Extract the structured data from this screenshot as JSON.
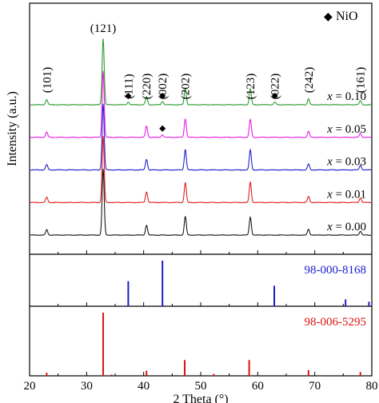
{
  "chart_data": {
    "type": "line",
    "title": "",
    "xlabel": "2 Theta (°)",
    "ylabel": "Intensity (a.u.)",
    "xlim": [
      20,
      80
    ],
    "xticks": [
      20,
      30,
      40,
      50,
      60,
      70,
      80
    ],
    "grid": false,
    "legend": {
      "symbol": "◆",
      "label": "NiO",
      "position": "top-right"
    },
    "panels": {
      "sample_count": 5,
      "sample_height": 5,
      "ref_height": 2
    },
    "peak_labels": [
      {
        "text": "(101)",
        "x": 23.0
      },
      {
        "text": "(121)",
        "x": 32.9
      },
      {
        "text": "(111)",
        "x": 37.3
      },
      {
        "text": "(220)",
        "x": 40.5
      },
      {
        "text": "(002)",
        "x": 43.3
      },
      {
        "text": "(202)",
        "x": 47.3
      },
      {
        "text": "(123)",
        "x": 58.7
      },
      {
        "text": "(022)",
        "x": 63.0
      },
      {
        "text": "(242)",
        "x": 68.9
      },
      {
        "text": "(161)",
        "x": 78.0
      }
    ],
    "nio_markers": [
      {
        "series": "x = 0.10",
        "x": 37.3
      },
      {
        "series": "x = 0.10",
        "x": 43.3
      },
      {
        "series": "x = 0.10",
        "x": 63.0
      },
      {
        "series": "x = 0.05",
        "x": 43.3
      }
    ],
    "series": [
      {
        "name": "x = 0.10",
        "color": "#2e9a2e",
        "peaks": [
          [
            23.0,
            0.08
          ],
          [
            32.9,
            1.0
          ],
          [
            37.3,
            0.04
          ],
          [
            40.5,
            0.12
          ],
          [
            43.3,
            0.05
          ],
          [
            47.3,
            0.25
          ],
          [
            58.7,
            0.24
          ],
          [
            63.0,
            0.04
          ],
          [
            68.9,
            0.09
          ],
          [
            78.0,
            0.06
          ]
        ]
      },
      {
        "name": "x = 0.05",
        "color": "#e81ee8",
        "peaks": [
          [
            23.0,
            0.08
          ],
          [
            32.9,
            1.0
          ],
          [
            40.5,
            0.17
          ],
          [
            43.3,
            0.04
          ],
          [
            47.3,
            0.28
          ],
          [
            58.7,
            0.27
          ],
          [
            68.9,
            0.09
          ],
          [
            78.0,
            0.06
          ]
        ]
      },
      {
        "name": "x = 0.03",
        "color": "#2222cc",
        "peaks": [
          [
            23.0,
            0.08
          ],
          [
            32.9,
            1.0
          ],
          [
            40.5,
            0.16
          ],
          [
            47.3,
            0.31
          ],
          [
            58.7,
            0.3
          ],
          [
            68.9,
            0.09
          ],
          [
            78.0,
            0.07
          ]
        ]
      },
      {
        "name": "x = 0.01",
        "color": "#e02020",
        "peaks": [
          [
            23.0,
            0.08
          ],
          [
            32.9,
            1.0
          ],
          [
            40.5,
            0.16
          ],
          [
            47.3,
            0.3
          ],
          [
            58.7,
            0.31
          ],
          [
            68.9,
            0.09
          ],
          [
            78.0,
            0.07
          ]
        ]
      },
      {
        "name": "x = 0.00",
        "color": "#1a1a1a",
        "peaks": [
          [
            23.0,
            0.08
          ],
          [
            32.9,
            1.0
          ],
          [
            40.5,
            0.15
          ],
          [
            47.3,
            0.28
          ],
          [
            58.7,
            0.27
          ],
          [
            68.9,
            0.09
          ],
          [
            78.0,
            0.06
          ]
        ]
      }
    ],
    "references": [
      {
        "label": "98-000-8168",
        "color": "#1a1acc",
        "sticks": [
          [
            37.3,
            0.55
          ],
          [
            43.3,
            1.0
          ],
          [
            62.9,
            0.45
          ],
          [
            75.4,
            0.15
          ],
          [
            79.5,
            0.1
          ]
        ]
      },
      {
        "label": "98-006-5295",
        "color": "#dd1111",
        "sticks": [
          [
            23.0,
            0.05
          ],
          [
            32.9,
            1.0
          ],
          [
            40.5,
            0.08
          ],
          [
            47.2,
            0.25
          ],
          [
            58.5,
            0.25
          ],
          [
            68.9,
            0.09
          ],
          [
            78.0,
            0.06
          ],
          [
            52.3,
            0.03
          ],
          [
            34.4,
            0.02
          ]
        ]
      }
    ]
  }
}
